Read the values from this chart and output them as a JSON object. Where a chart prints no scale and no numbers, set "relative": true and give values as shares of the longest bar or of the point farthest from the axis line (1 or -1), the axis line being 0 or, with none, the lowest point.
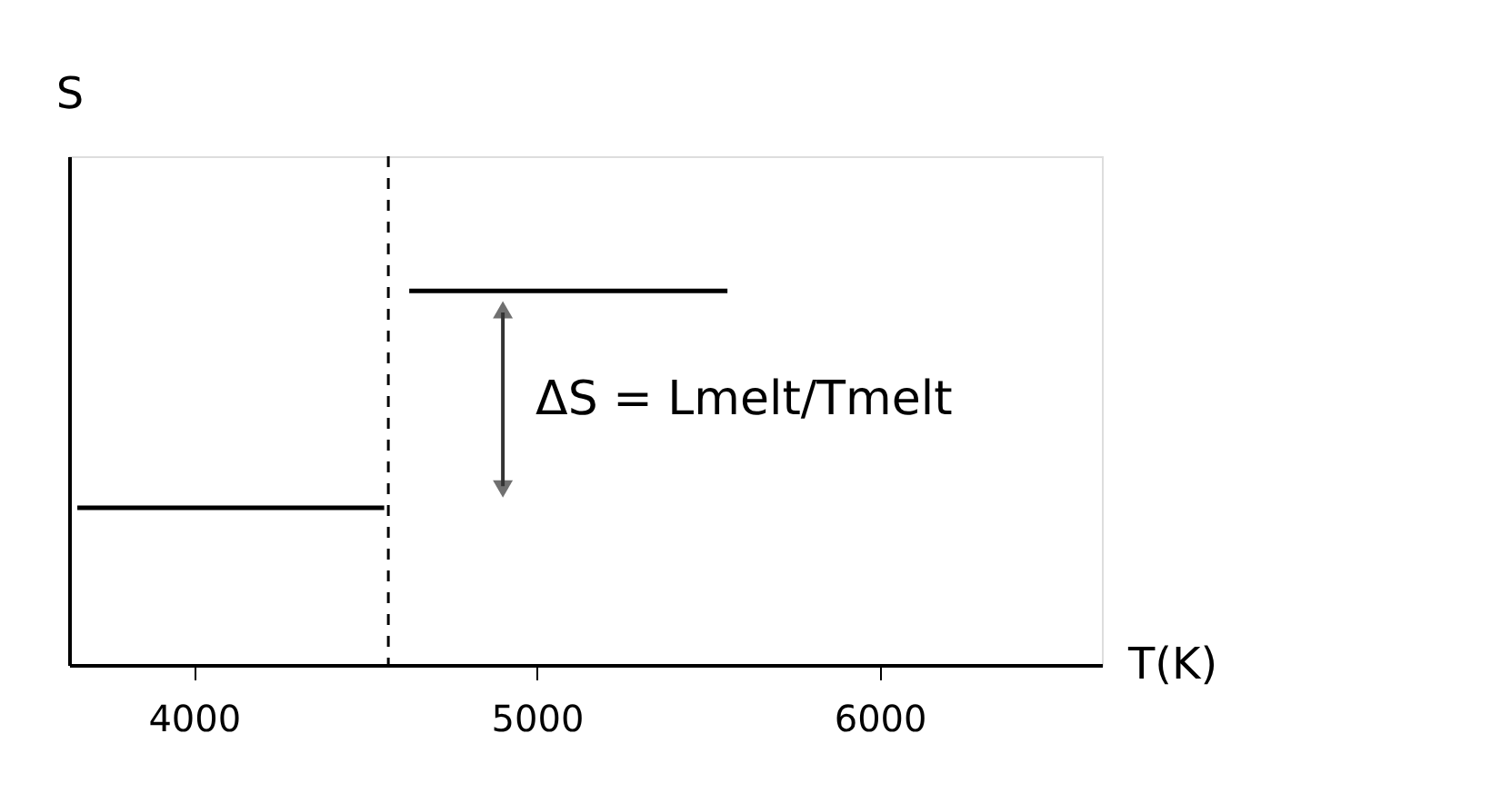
{
  "chart_data": {
    "type": "line",
    "relative": true,
    "xlabel": "T(K)",
    "ylabel": "S",
    "x": [
      3660,
      4555,
      4590,
      4628,
      5556
    ],
    "xlim": [
      3636,
      6648
    ],
    "xticks": [
      4000,
      5000,
      6000
    ],
    "grid": false,
    "marker": "none",
    "line_style": "solid",
    "series": [
      {
        "color": "#000000",
        "values": [
          0.42,
          0.42,
          null,
          1,
          1
        ]
      }
    ],
    "ref_lines": [
      {
        "axis": "x",
        "value": 4567,
        "color": "#000000",
        "line_style": "dashed"
      }
    ],
    "annotations": [
      "ΔS = Lmelt/Tmelt"
    ]
  }
}
